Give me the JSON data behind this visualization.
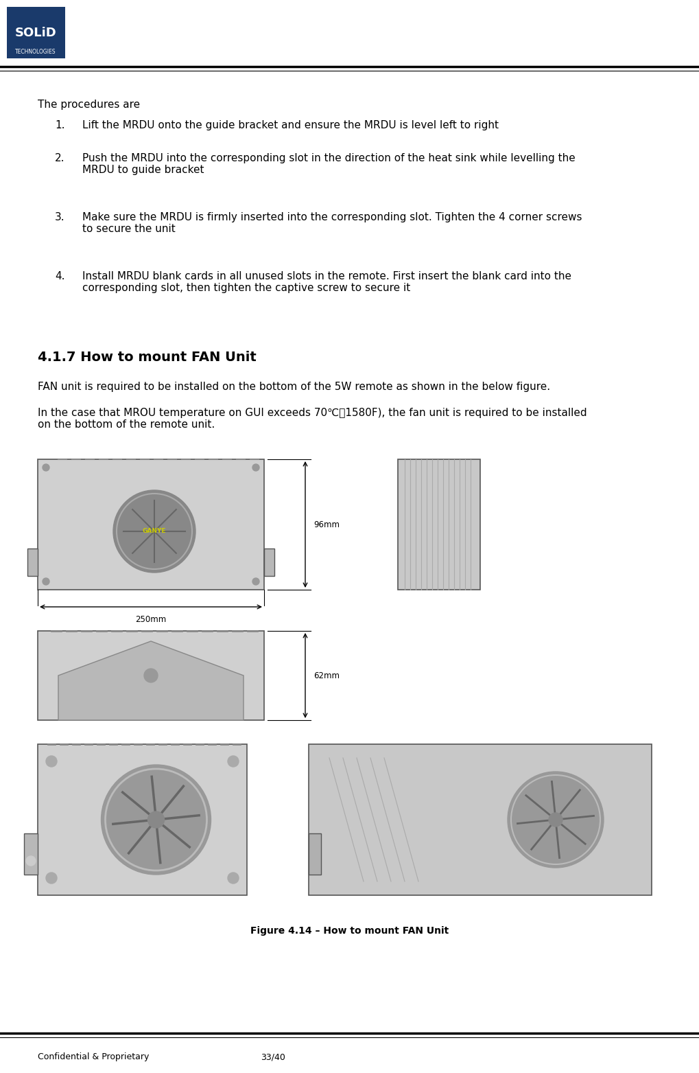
{
  "bg_color": "#ffffff",
  "logo_box_color": "#1a3a6b",
  "logo_text_main": "SOLiD",
  "logo_text_sub": "TECHNOLOGIES",
  "footer_left": "Confidential & Proprietary",
  "footer_right": "33/40",
  "body_intro": "The procedures are",
  "procedures": [
    "Lift the MRDU onto the guide bracket and ensure the MRDU is level left to right",
    "Push the MRDU into the corresponding slot in the direction of the heat sink while levelling the\nMRDU to guide bracket",
    "Make sure the MRDU is firmly inserted into the corresponding slot. Tighten the 4 corner screws\nto secure the unit",
    "Install MRDU blank cards in all unused slots in the remote. First insert the blank card into the\ncorresponding slot, then tighten the captive screw to secure it"
  ],
  "section_title": "4.1.7 How to mount FAN Unit",
  "section_para1": "FAN unit is required to be installed on the bottom of the 5W remote as shown in the below figure.",
  "section_para2": "In the case that MROU temperature on GUI exceeds 70℃（1580F), the fan unit is required to be installed\non the bottom of the remote unit.",
  "figure_caption": "Figure 4.14 – How to mount FAN Unit",
  "text_color": "#000000",
  "font_size_body": 11,
  "font_size_section": 14,
  "font_size_footer": 9
}
